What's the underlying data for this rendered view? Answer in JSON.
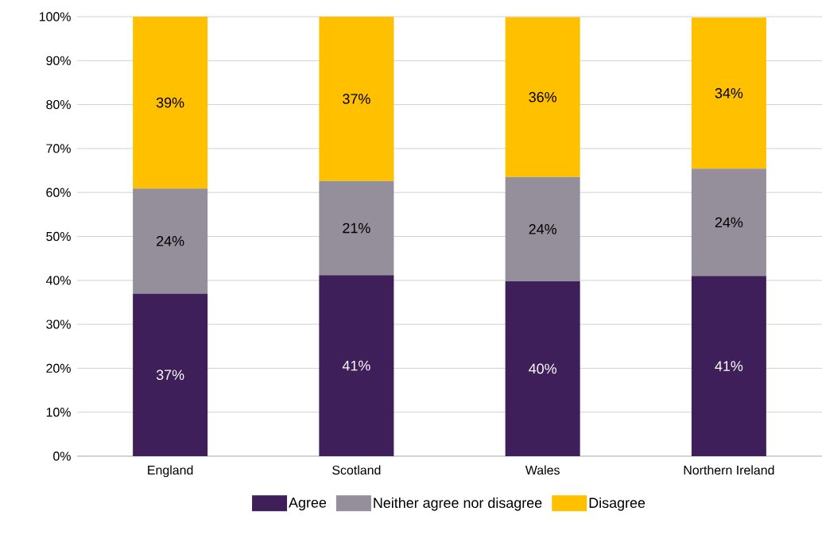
{
  "chart_data": {
    "type": "bar",
    "stacked": true,
    "categories": [
      "England",
      "Scotland",
      "Wales",
      "Northern Ireland"
    ],
    "series": [
      {
        "name": "Agree",
        "color": "#3f1f5a",
        "values": [
          37,
          41.2,
          39.8,
          41
        ],
        "value_labels": [
          "37%",
          "41%",
          "40%",
          "41%"
        ]
      },
      {
        "name": "Neither agree nor disagree",
        "color": "#958e9b",
        "values": [
          23.9,
          21.4,
          23.7,
          24.4
        ],
        "value_labels": [
          "24%",
          "21%",
          "24%",
          "24%"
        ]
      },
      {
        "name": "Disagree",
        "color": "#ffc000",
        "values": [
          39.1,
          37.4,
          36.4,
          34.4
        ],
        "value_labels": [
          "39%",
          "37%",
          "36%",
          "34%"
        ]
      }
    ],
    "ylim": [
      0,
      100
    ],
    "yticks": [
      {
        "value": 0,
        "label": "0%"
      },
      {
        "value": 10,
        "label": "10%"
      },
      {
        "value": 20,
        "label": "20%"
      },
      {
        "value": 30,
        "label": "30%"
      },
      {
        "value": 40,
        "label": "40%"
      },
      {
        "value": 50,
        "label": "50%"
      },
      {
        "value": 60,
        "label": "60%"
      },
      {
        "value": 70,
        "label": "70%"
      },
      {
        "value": 80,
        "label": "80%"
      },
      {
        "value": 90,
        "label": "90%"
      },
      {
        "value": 100,
        "label": "100%"
      }
    ],
    "grid": "y",
    "legend": "bottom"
  }
}
